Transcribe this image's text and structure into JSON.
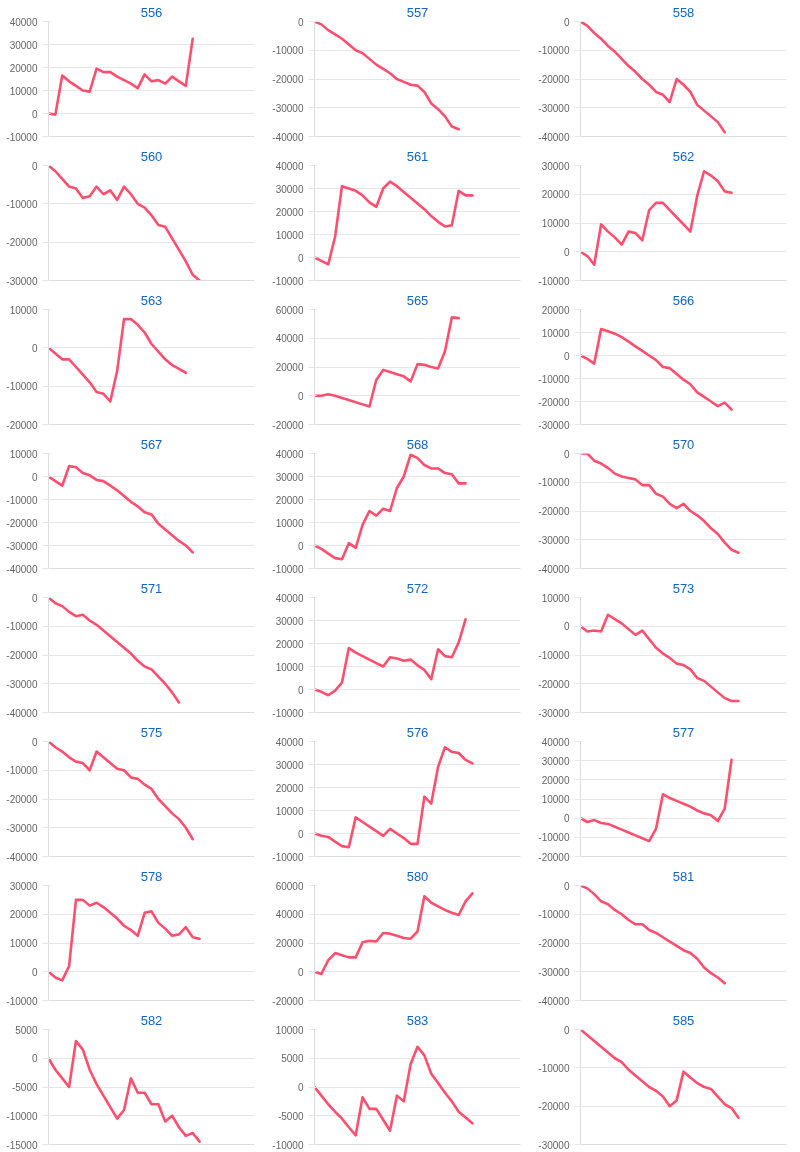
{
  "chart_data": [
    {
      "type": "line",
      "title": "556",
      "color": "#ff4f6f",
      "grid": "y",
      "tick_labels": "y",
      "ylim": [
        -10000,
        40000
      ],
      "yticks": [
        -10000,
        0,
        10000,
        20000,
        30000,
        40000
      ],
      "categories": [
        null,
        null,
        null,
        null,
        null,
        null,
        null,
        null,
        null,
        null,
        null,
        null,
        null,
        null,
        null,
        null,
        null,
        null,
        null,
        null,
        null,
        null,
        null,
        null,
        null,
        null,
        null,
        null,
        null,
        null,
        null
      ],
      "values": [
        0,
        -500,
        16500,
        14000,
        12000,
        10000,
        9500,
        19500,
        18000,
        18000,
        16000,
        14500,
        13000,
        11000,
        17000,
        14000,
        14500,
        13000,
        16000,
        14000,
        12000,
        32500,
        null,
        null,
        null,
        null,
        null,
        null,
        null,
        null,
        null
      ]
    },
    {
      "type": "line",
      "title": "557",
      "color": "#ff4f6f",
      "grid": "y",
      "tick_labels": "y",
      "ylim": [
        -40000,
        0
      ],
      "yticks": [
        -40000,
        -30000,
        -20000,
        -10000,
        0
      ],
      "categories": [
        null,
        null,
        null,
        null,
        null,
        null,
        null,
        null,
        null,
        null,
        null,
        null,
        null,
        null,
        null,
        null,
        null,
        null,
        null,
        null,
        null,
        null,
        null,
        null,
        null,
        null,
        null,
        null,
        null,
        null,
        null
      ],
      "values": [
        0,
        -1000,
        -3000,
        -4500,
        -6000,
        -8000,
        -10000,
        -11000,
        -13000,
        -15000,
        -16500,
        -18000,
        -20000,
        -21000,
        -22000,
        -22300,
        -24500,
        -28500,
        -30500,
        -33000,
        -36500,
        -37500,
        null,
        null,
        null,
        null,
        null,
        null,
        null,
        null,
        null
      ]
    },
    {
      "type": "line",
      "title": "558",
      "color": "#ff4f6f",
      "grid": "y",
      "tick_labels": "y",
      "ylim": [
        -40000,
        0
      ],
      "yticks": [
        -40000,
        -30000,
        -20000,
        -10000,
        0
      ],
      "categories": [
        null,
        null,
        null,
        null,
        null,
        null,
        null,
        null,
        null,
        null,
        null,
        null,
        null,
        null,
        null,
        null,
        null,
        null,
        null,
        null,
        null,
        null,
        null,
        null,
        null,
        null,
        null,
        null,
        null,
        null,
        null
      ],
      "values": [
        0,
        -1500,
        -4000,
        -6000,
        -8500,
        -10500,
        -13000,
        -15500,
        -17500,
        -20000,
        -22000,
        -24500,
        -25500,
        -28000,
        -20000,
        -22000,
        -24500,
        -29000,
        -31000,
        -33000,
        -35000,
        -38500,
        null,
        null,
        null,
        null,
        null,
        null,
        null,
        null,
        null
      ]
    },
    {
      "type": "line",
      "title": "560",
      "color": "#ff4f6f",
      "grid": "y",
      "tick_labels": "y",
      "ylim": [
        -30000,
        0
      ],
      "yticks": [
        -30000,
        -20000,
        -10000,
        0
      ],
      "categories": [
        null,
        null,
        null,
        null,
        null,
        null,
        null,
        null,
        null,
        null,
        null,
        null,
        null,
        null,
        null,
        null,
        null,
        null,
        null,
        null,
        null,
        null,
        null,
        null,
        null,
        null,
        null,
        null,
        null,
        null,
        null
      ],
      "values": [
        0,
        -1500,
        -3500,
        -5500,
        -6000,
        -8500,
        -8000,
        -5500,
        -7500,
        -6500,
        -9000,
        -5500,
        -7500,
        -10000,
        -11000,
        -13000,
        -15500,
        -16000,
        -19000,
        -22000,
        -25000,
        -28500,
        -30000,
        null,
        null,
        null,
        null,
        null,
        null,
        null,
        null
      ]
    },
    {
      "type": "line",
      "title": "561",
      "color": "#ff4f6f",
      "grid": "y",
      "tick_labels": "y",
      "ylim": [
        -10000,
        40000
      ],
      "yticks": [
        -10000,
        0,
        10000,
        20000,
        30000,
        40000
      ],
      "categories": [
        null,
        null,
        null,
        null,
        null,
        null,
        null,
        null,
        null,
        null,
        null,
        null,
        null,
        null,
        null,
        null,
        null,
        null,
        null,
        null,
        null,
        null,
        null,
        null,
        null,
        null,
        null,
        null,
        null,
        null,
        null
      ],
      "values": [
        0,
        -1500,
        -3000,
        9000,
        31000,
        30000,
        29000,
        27000,
        24000,
        22000,
        30000,
        33000,
        31000,
        28500,
        26000,
        23500,
        21000,
        18000,
        15500,
        13500,
        14000,
        29000,
        27000,
        27000,
        null,
        null,
        null,
        null,
        null,
        null,
        null
      ]
    },
    {
      "type": "line",
      "title": "562",
      "color": "#ff4f6f",
      "grid": "y",
      "tick_labels": "y",
      "ylim": [
        -10000,
        30000
      ],
      "yticks": [
        -10000,
        0,
        10000,
        20000,
        30000
      ],
      "categories": [
        null,
        null,
        null,
        null,
        null,
        null,
        null,
        null,
        null,
        null,
        null,
        null,
        null,
        null,
        null,
        null,
        null,
        null,
        null,
        null,
        null,
        null,
        null,
        null,
        null,
        null,
        null,
        null,
        null,
        null,
        null
      ],
      "values": [
        0,
        -1500,
        -4500,
        9500,
        7000,
        5000,
        2500,
        7000,
        6500,
        4000,
        14500,
        17000,
        17000,
        14500,
        12000,
        9500,
        7000,
        19500,
        28000,
        26500,
        24500,
        21000,
        20500,
        null,
        null,
        null,
        null,
        null,
        null,
        null,
        null
      ]
    },
    {
      "type": "line",
      "title": "563",
      "color": "#ff4f6f",
      "grid": "y",
      "tick_labels": "y",
      "ylim": [
        -20000,
        10000
      ],
      "yticks": [
        -20000,
        -10000,
        0,
        10000
      ],
      "categories": [
        null,
        null,
        null,
        null,
        null,
        null,
        null,
        null,
        null,
        null,
        null,
        null,
        null,
        null,
        null,
        null,
        null,
        null,
        null,
        null,
        null,
        null,
        null,
        null,
        null,
        null,
        null,
        null,
        null,
        null,
        null
      ],
      "values": [
        0,
        -1500,
        -3000,
        -3000,
        -5000,
        -7000,
        -9000,
        -11500,
        -12000,
        -14000,
        -6000,
        7500,
        7500,
        6000,
        4000,
        1000,
        -1000,
        -3000,
        -4500,
        -5500,
        -6500,
        null,
        null,
        null,
        null,
        null,
        null,
        null,
        null,
        null,
        null
      ]
    },
    {
      "type": "line",
      "title": "565",
      "color": "#ff4f6f",
      "grid": "y",
      "tick_labels": "y",
      "ylim": [
        -20000,
        60000
      ],
      "yticks": [
        -20000,
        0,
        20000,
        40000,
        60000
      ],
      "categories": [
        null,
        null,
        null,
        null,
        null,
        null,
        null,
        null,
        null,
        null,
        null,
        null,
        null,
        null,
        null,
        null,
        null,
        null,
        null,
        null,
        null,
        null,
        null,
        null,
        null,
        null,
        null,
        null,
        null,
        null,
        null
      ],
      "values": [
        0,
        0,
        1000,
        0,
        -1500,
        -3000,
        -4500,
        -6000,
        -7500,
        11000,
        18000,
        16500,
        15000,
        13500,
        10000,
        22000,
        21500,
        20000,
        19000,
        31000,
        54500,
        54000,
        null,
        null,
        null,
        null,
        null,
        null,
        null,
        null,
        null
      ]
    },
    {
      "type": "line",
      "title": "566",
      "color": "#ff4f6f",
      "grid": "y",
      "tick_labels": "y",
      "ylim": [
        -30000,
        20000
      ],
      "yticks": [
        -30000,
        -20000,
        -10000,
        0,
        10000,
        20000
      ],
      "categories": [
        null,
        null,
        null,
        null,
        null,
        null,
        null,
        null,
        null,
        null,
        null,
        null,
        null,
        null,
        null,
        null,
        null,
        null,
        null,
        null,
        null,
        null,
        null,
        null,
        null,
        null,
        null,
        null,
        null,
        null,
        null
      ],
      "values": [
        0,
        -1500,
        -3500,
        11500,
        10500,
        9500,
        8000,
        6000,
        4000,
        2000,
        0,
        -2000,
        -5000,
        -5500,
        -8000,
        -10500,
        -12500,
        -16000,
        -18000,
        -20000,
        -22000,
        -20500,
        -23500,
        null,
        null,
        null,
        null,
        null,
        null,
        null,
        null
      ]
    },
    {
      "type": "line",
      "title": "567",
      "color": "#ff4f6f",
      "grid": "y",
      "tick_labels": "y",
      "ylim": [
        -40000,
        10000
      ],
      "yticks": [
        -40000,
        -30000,
        -20000,
        -10000,
        0,
        10000
      ],
      "categories": [
        null,
        null,
        null,
        null,
        null,
        null,
        null,
        null,
        null,
        null,
        null,
        null,
        null,
        null,
        null,
        null,
        null,
        null,
        null,
        null,
        null,
        null,
        null,
        null,
        null,
        null,
        null,
        null,
        null,
        null,
        null
      ],
      "values": [
        0,
        -2000,
        -4000,
        4500,
        4000,
        1500,
        500,
        -1500,
        -2000,
        -4000,
        -6000,
        -8500,
        -11000,
        -13000,
        -15500,
        -16500,
        -20500,
        -23000,
        -25500,
        -28000,
        -30000,
        -33000,
        null,
        null,
        null,
        null,
        null,
        null,
        null,
        null,
        null
      ]
    },
    {
      "type": "line",
      "title": "568",
      "color": "#ff4f6f",
      "grid": "y",
      "tick_labels": "y",
      "ylim": [
        -10000,
        40000
      ],
      "yticks": [
        -10000,
        0,
        10000,
        20000,
        30000,
        40000
      ],
      "categories": [
        null,
        null,
        null,
        null,
        null,
        null,
        null,
        null,
        null,
        null,
        null,
        null,
        null,
        null,
        null,
        null,
        null,
        null,
        null,
        null,
        null,
        null,
        null,
        null,
        null,
        null,
        null,
        null,
        null,
        null,
        null
      ],
      "values": [
        0,
        -1500,
        -3500,
        -5500,
        -6000,
        1000,
        -1000,
        9000,
        15000,
        13000,
        16000,
        15000,
        25000,
        30000,
        39500,
        38000,
        35000,
        33500,
        33500,
        31500,
        31000,
        27000,
        27000,
        null,
        null,
        null,
        null,
        null,
        null,
        null,
        null
      ]
    },
    {
      "type": "line",
      "title": "570",
      "color": "#ff4f6f",
      "grid": "y",
      "tick_labels": "y",
      "ylim": [
        -40000,
        0
      ],
      "yticks": [
        -40000,
        -30000,
        -20000,
        -10000,
        0
      ],
      "categories": [
        null,
        null,
        null,
        null,
        null,
        null,
        null,
        null,
        null,
        null,
        null,
        null,
        null,
        null,
        null,
        null,
        null,
        null,
        null,
        null,
        null,
        null,
        null,
        null,
        null,
        null,
        null,
        null,
        null,
        null,
        null
      ],
      "values": [
        0,
        0,
        -2500,
        -3500,
        -5000,
        -7000,
        -8000,
        -8500,
        -9000,
        -11000,
        -11000,
        -14000,
        -15000,
        -17500,
        -19000,
        -17500,
        -20000,
        -21500,
        -23500,
        -26000,
        -28000,
        -31000,
        -33500,
        -34500,
        null,
        null,
        null,
        null,
        null,
        null,
        null
      ]
    },
    {
      "type": "line",
      "title": "571",
      "color": "#ff4f6f",
      "grid": "y",
      "tick_labels": "y",
      "ylim": [
        -40000,
        0
      ],
      "yticks": [
        -40000,
        -30000,
        -20000,
        -10000,
        0
      ],
      "categories": [
        null,
        null,
        null,
        null,
        null,
        null,
        null,
        null,
        null,
        null,
        null,
        null,
        null,
        null,
        null,
        null,
        null,
        null,
        null,
        null,
        null,
        null,
        null,
        null,
        null,
        null,
        null,
        null,
        null,
        null,
        null
      ],
      "values": [
        0,
        -2000,
        -3000,
        -5000,
        -6500,
        -6000,
        -8000,
        -9500,
        -11500,
        -13500,
        -15500,
        -17500,
        -19500,
        -22000,
        -24000,
        -25000,
        -27500,
        -30000,
        -33000,
        -36500,
        null,
        null,
        null,
        null,
        null,
        null,
        null,
        null,
        null,
        null,
        null
      ]
    },
    {
      "type": "line",
      "title": "572",
      "color": "#ff4f6f",
      "grid": "y",
      "tick_labels": "y",
      "ylim": [
        -10000,
        40000
      ],
      "yticks": [
        -10000,
        0,
        10000,
        20000,
        30000,
        40000
      ],
      "categories": [
        null,
        null,
        null,
        null,
        null,
        null,
        null,
        null,
        null,
        null,
        null,
        null,
        null,
        null,
        null,
        null,
        null,
        null,
        null,
        null,
        null,
        null,
        null,
        null,
        null,
        null,
        null,
        null,
        null,
        null,
        null
      ],
      "values": [
        0,
        -1000,
        -2500,
        -500,
        3000,
        18000,
        16000,
        14500,
        13000,
        11500,
        10000,
        14000,
        13500,
        12500,
        13000,
        10500,
        8500,
        4500,
        17500,
        14500,
        14000,
        20500,
        30500,
        null,
        null,
        null,
        null,
        null,
        null,
        null,
        null
      ]
    },
    {
      "type": "line",
      "title": "573",
      "color": "#ff4f6f",
      "grid": "y",
      "tick_labels": "y",
      "ylim": [
        -30000,
        10000
      ],
      "yticks": [
        -30000,
        -20000,
        -10000,
        0,
        10000
      ],
      "categories": [
        null,
        null,
        null,
        null,
        null,
        null,
        null,
        null,
        null,
        null,
        null,
        null,
        null,
        null,
        null,
        null,
        null,
        null,
        null,
        null,
        null,
        null,
        null,
        null,
        null,
        null,
        null,
        null,
        null,
        null,
        null
      ],
      "values": [
        0,
        -1800,
        -1500,
        -1800,
        4000,
        2500,
        1000,
        -1000,
        -3000,
        -1500,
        -4500,
        -7500,
        -9500,
        -11000,
        -13000,
        -13500,
        -15000,
        -18000,
        -19000,
        -21000,
        -23000,
        -25000,
        -26000,
        -26000,
        null,
        null,
        null,
        null,
        null,
        null,
        null
      ]
    },
    {
      "type": "line",
      "title": "575",
      "color": "#ff4f6f",
      "grid": "y",
      "tick_labels": "y",
      "ylim": [
        -40000,
        0
      ],
      "yticks": [
        -40000,
        -30000,
        -20000,
        -10000,
        0
      ],
      "categories": [
        null,
        null,
        null,
        null,
        null,
        null,
        null,
        null,
        null,
        null,
        null,
        null,
        null,
        null,
        null,
        null,
        null,
        null,
        null,
        null,
        null,
        null,
        null,
        null,
        null,
        null,
        null,
        null,
        null,
        null,
        null
      ],
      "values": [
        0,
        -2000,
        -3500,
        -5500,
        -7000,
        -7500,
        -10000,
        -3500,
        -5500,
        -7500,
        -9500,
        -10000,
        -12500,
        -13000,
        -15000,
        -16500,
        -20000,
        -22500,
        -25000,
        -27000,
        -30000,
        -34000,
        null,
        null,
        null,
        null,
        null,
        null,
        null,
        null,
        null
      ]
    },
    {
      "type": "line",
      "title": "576",
      "color": "#ff4f6f",
      "grid": "y",
      "tick_labels": "y",
      "ylim": [
        -10000,
        40000
      ],
      "yticks": [
        -10000,
        0,
        10000,
        20000,
        30000,
        40000
      ],
      "categories": [
        null,
        null,
        null,
        null,
        null,
        null,
        null,
        null,
        null,
        null,
        null,
        null,
        null,
        null,
        null,
        null,
        null,
        null,
        null,
        null,
        null,
        null,
        null,
        null,
        null,
        null,
        null,
        null,
        null,
        null,
        null
      ],
      "values": [
        0,
        -1000,
        -1500,
        -3500,
        -5500,
        -6000,
        7000,
        5000,
        3000,
        1000,
        -1000,
        2000,
        0,
        -2000,
        -4500,
        -4500,
        16000,
        13000,
        29000,
        37500,
        35500,
        35000,
        32000,
        30500,
        null,
        null,
        null,
        null,
        null,
        null,
        null
      ]
    },
    {
      "type": "line",
      "title": "577",
      "color": "#ff4f6f",
      "grid": "y",
      "tick_labels": "y",
      "ylim": [
        -20000,
        40000
      ],
      "yticks": [
        -20000,
        -10000,
        0,
        10000,
        20000,
        30000,
        40000
      ],
      "categories": [
        null,
        null,
        null,
        null,
        null,
        null,
        null,
        null,
        null,
        null,
        null,
        null,
        null,
        null,
        null,
        null,
        null,
        null,
        null,
        null,
        null,
        null,
        null,
        null,
        null,
        null,
        null,
        null,
        null,
        null,
        null
      ],
      "values": [
        0,
        -2000,
        -1000,
        -2500,
        -3000,
        -4500,
        -6000,
        -7500,
        -9000,
        -10500,
        -12000,
        -5500,
        12500,
        10500,
        9000,
        7500,
        6000,
        4000,
        2500,
        1500,
        -1500,
        5000,
        30500,
        null,
        null,
        null,
        null,
        null,
        null,
        null,
        null
      ]
    },
    {
      "type": "line",
      "title": "578",
      "color": "#ff4f6f",
      "grid": "y",
      "tick_labels": "y",
      "ylim": [
        -10000,
        30000
      ],
      "yticks": [
        -10000,
        0,
        10000,
        20000,
        30000
      ],
      "categories": [
        null,
        null,
        null,
        null,
        null,
        null,
        null,
        null,
        null,
        null,
        null,
        null,
        null,
        null,
        null,
        null,
        null,
        null,
        null,
        null,
        null,
        null,
        null,
        null,
        null,
        null,
        null,
        null,
        null,
        null,
        null
      ],
      "values": [
        0,
        -2000,
        -3000,
        2000,
        25000,
        25000,
        23000,
        24000,
        22500,
        20500,
        18500,
        16000,
        14500,
        12500,
        20500,
        21000,
        17000,
        15000,
        12500,
        13000,
        15500,
        12000,
        11500,
        null,
        null,
        null,
        null,
        null,
        null,
        null,
        null
      ]
    },
    {
      "type": "line",
      "title": "580",
      "color": "#ff4f6f",
      "grid": "y",
      "tick_labels": "y",
      "ylim": [
        -20000,
        60000
      ],
      "yticks": [
        -20000,
        0,
        20000,
        40000,
        60000
      ],
      "categories": [
        null,
        null,
        null,
        null,
        null,
        null,
        null,
        null,
        null,
        null,
        null,
        null,
        null,
        null,
        null,
        null,
        null,
        null,
        null,
        null,
        null,
        null,
        null,
        null,
        null,
        null,
        null,
        null,
        null,
        null,
        null
      ],
      "values": [
        0,
        -1500,
        8000,
        13000,
        11500,
        10000,
        10000,
        20500,
        21500,
        21000,
        27000,
        26500,
        25000,
        23500,
        23000,
        28000,
        52500,
        48000,
        45500,
        43000,
        41000,
        39500,
        49000,
        54500,
        null,
        null,
        null,
        null,
        null,
        null,
        null
      ]
    },
    {
      "type": "line",
      "title": "581",
      "color": "#ff4f6f",
      "grid": "y",
      "tick_labels": "y",
      "ylim": [
        -40000,
        0
      ],
      "yticks": [
        -40000,
        -30000,
        -20000,
        -10000,
        0
      ],
      "categories": [
        null,
        null,
        null,
        null,
        null,
        null,
        null,
        null,
        null,
        null,
        null,
        null,
        null,
        null,
        null,
        null,
        null,
        null,
        null,
        null,
        null,
        null,
        null,
        null,
        null,
        null,
        null,
        null,
        null,
        null,
        null
      ],
      "values": [
        0,
        -1000,
        -3000,
        -5500,
        -6500,
        -8500,
        -10000,
        -12000,
        -13500,
        -13500,
        -15500,
        -16500,
        -18000,
        -19500,
        -21000,
        -22500,
        -23500,
        -25500,
        -28500,
        -30500,
        -32000,
        -34000,
        null,
        null,
        null,
        null,
        null,
        null,
        null,
        null,
        null
      ]
    },
    {
      "type": "line",
      "title": "582",
      "color": "#ff4f6f",
      "grid": "y",
      "tick_labels": "y",
      "ylim": [
        -15000,
        5000
      ],
      "yticks": [
        -15000,
        -10000,
        -5000,
        0,
        5000
      ],
      "categories": [
        null,
        null,
        null,
        null,
        null,
        null,
        null,
        null,
        null,
        null,
        null,
        null,
        null,
        null,
        null,
        null,
        null,
        null,
        null,
        null,
        null,
        null,
        null,
        null,
        null,
        null,
        null,
        null,
        null,
        null,
        null
      ],
      "values": [
        0,
        -2000,
        -3500,
        -5000,
        3000,
        1500,
        -2000,
        -4500,
        -6500,
        -8500,
        -10500,
        -9000,
        -3500,
        -6000,
        -6000,
        -8000,
        -8000,
        -11000,
        -10000,
        -12000,
        -13500,
        -13000,
        -14500,
        null,
        null,
        null,
        null,
        null,
        null,
        null,
        null
      ]
    },
    {
      "type": "line",
      "title": "583",
      "color": "#ff4f6f",
      "grid": "y",
      "tick_labels": "y",
      "ylim": [
        -10000,
        10000
      ],
      "yticks": [
        -10000,
        -5000,
        0,
        5000,
        10000
      ],
      "categories": [
        null,
        null,
        null,
        null,
        null,
        null,
        null,
        null,
        null,
        null,
        null,
        null,
        null,
        null,
        null,
        null,
        null,
        null,
        null,
        null,
        null,
        null,
        null,
        null,
        null,
        null,
        null,
        null,
        null,
        null,
        null
      ],
      "values": [
        0,
        -1500,
        -3000,
        -4300,
        -5500,
        -7000,
        -8400,
        -1800,
        -3800,
        -3800,
        -5700,
        -7600,
        -1500,
        -2500,
        4000,
        7000,
        5500,
        2300,
        700,
        -1000,
        -2500,
        -4300,
        -5300,
        -6300,
        null,
        null,
        null,
        null,
        null,
        null,
        null
      ]
    },
    {
      "type": "line",
      "title": "585",
      "color": "#ff4f6f",
      "grid": "y",
      "tick_labels": "y",
      "ylim": [
        -30000,
        0
      ],
      "yticks": [
        -30000,
        -20000,
        -10000,
        0
      ],
      "categories": [
        null,
        null,
        null,
        null,
        null,
        null,
        null,
        null,
        null,
        null,
        null,
        null,
        null,
        null,
        null,
        null,
        null,
        null,
        null,
        null,
        null,
        null,
        null,
        null,
        null,
        null,
        null,
        null,
        null,
        null,
        null
      ],
      "values": [
        0,
        -1500,
        -3000,
        -4500,
        -6000,
        -7500,
        -8500,
        -10500,
        -12000,
        -13500,
        -15000,
        -16000,
        -17500,
        -20000,
        -18500,
        -11000,
        -12500,
        -14000,
        -15000,
        -15500,
        -17500,
        -19500,
        -20500,
        -23000,
        null,
        null,
        null,
        null,
        null,
        null,
        null
      ]
    }
  ]
}
